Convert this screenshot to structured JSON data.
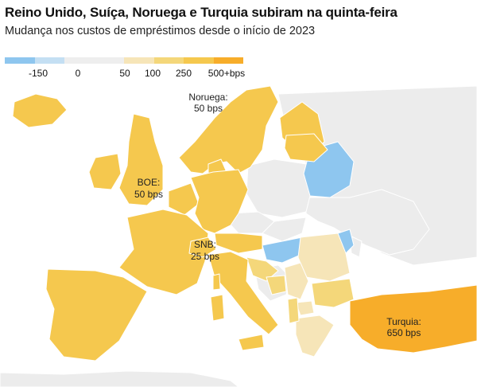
{
  "header": {
    "title": "Reino Unido, Suíça, Noruega e Turquia subiram na quinta-feira",
    "subtitle": "Mudança nos custos de empréstimos desde o início de 2023"
  },
  "legend": {
    "colors": [
      "#8ec6ef",
      "#c4dff3",
      "#eeeeee",
      "#eeeeee",
      "#f6e5b8",
      "#f4d77a",
      "#f5c84e",
      "#f7ad2a"
    ],
    "ticks": [
      "-150",
      "0",
      "50",
      "100",
      "250",
      "500+bps"
    ]
  },
  "map": {
    "colors": {
      "none": "#ececec",
      "negative": "#8ec6ef",
      "small": "#f6e5b8",
      "mid": "#f4d77a",
      "high": "#f5c84e",
      "top": "#f7ad2a",
      "border": "#ffffff"
    },
    "labels": {
      "norway": [
        "Noruega:",
        "50 bps"
      ],
      "uk": [
        "BOE:",
        "50 bps"
      ],
      "switzerland": [
        "SNB:",
        "25 bps"
      ],
      "turkey": [
        "Turquia:",
        "650 bps"
      ]
    }
  }
}
